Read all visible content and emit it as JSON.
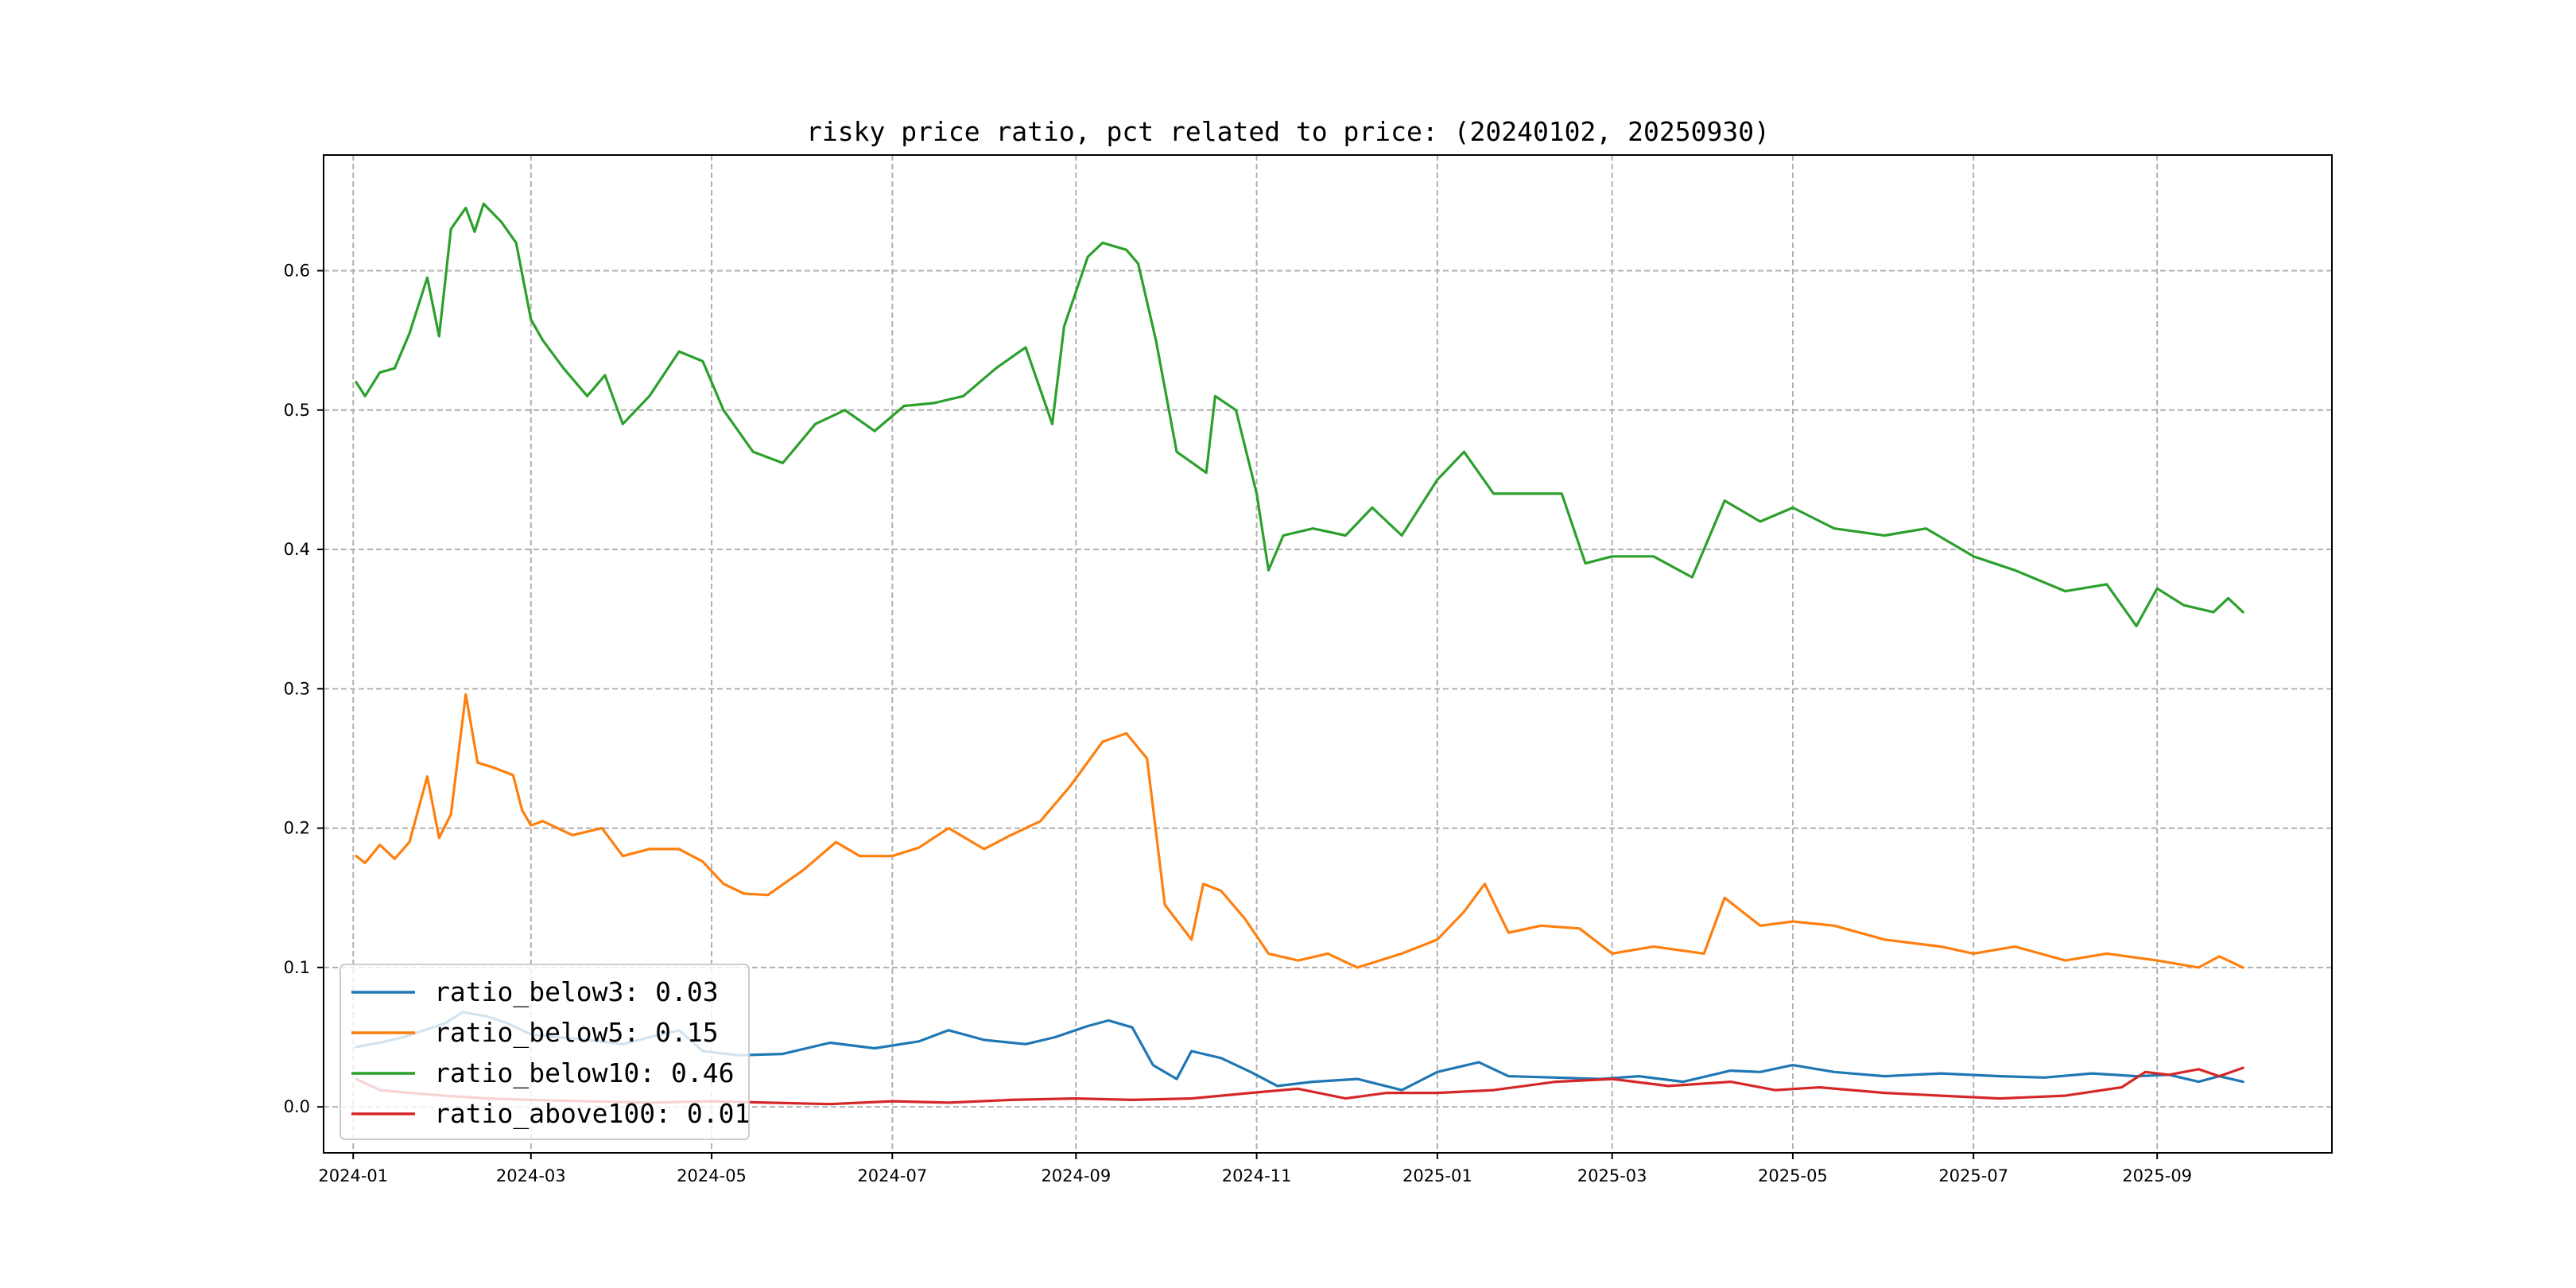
{
  "chart_data": {
    "type": "line",
    "title": "risky price ratio, pct related to price: (20240102, 20250930)",
    "xlabel": "",
    "ylabel": "",
    "x_range": [
      "2023-12-22",
      "2025-10-30"
    ],
    "ylim": [
      -0.033,
      0.683
    ],
    "x_ticks": [
      "2024-01-01",
      "2024-03-01",
      "2024-05-01",
      "2024-07-01",
      "2024-09-01",
      "2024-11-01",
      "2025-01-01",
      "2025-03-01",
      "2025-05-01",
      "2025-07-01",
      "2025-09-01"
    ],
    "x_tick_labels": [
      "2024-01",
      "2024-03",
      "2024-05",
      "2024-07",
      "2024-09",
      "2024-11",
      "2025-01",
      "2025-03",
      "2025-05",
      "2025-07",
      "2025-09"
    ],
    "y_ticks": [
      0.0,
      0.1,
      0.2,
      0.3,
      0.4,
      0.5,
      0.6
    ],
    "y_tick_labels": [
      "0.0",
      "0.1",
      "0.2",
      "0.3",
      "0.4",
      "0.5",
      "0.6"
    ],
    "grid": true,
    "legend_position": "lower-left",
    "series": [
      {
        "name": "ratio_below3",
        "legend_label": "ratio_below3: 0.03",
        "color": "#1f77b4",
        "points": [
          [
            "2024-01-02",
            0.043
          ],
          [
            "2024-01-10",
            0.046
          ],
          [
            "2024-01-18",
            0.05
          ],
          [
            "2024-01-25",
            0.055
          ],
          [
            "2024-02-01",
            0.06
          ],
          [
            "2024-02-07",
            0.068
          ],
          [
            "2024-02-15",
            0.065
          ],
          [
            "2024-02-22",
            0.06
          ],
          [
            "2024-03-01",
            0.052
          ],
          [
            "2024-03-10",
            0.05
          ],
          [
            "2024-03-20",
            0.048
          ],
          [
            "2024-04-01",
            0.045
          ],
          [
            "2024-04-10",
            0.05
          ],
          [
            "2024-04-20",
            0.055
          ],
          [
            "2024-04-28",
            0.04
          ],
          [
            "2024-05-10",
            0.037
          ],
          [
            "2024-05-25",
            0.038
          ],
          [
            "2024-06-10",
            0.046
          ],
          [
            "2024-06-25",
            0.042
          ],
          [
            "2024-07-10",
            0.047
          ],
          [
            "2024-07-20",
            0.055
          ],
          [
            "2024-08-01",
            0.048
          ],
          [
            "2024-08-15",
            0.045
          ],
          [
            "2024-08-25",
            0.05
          ],
          [
            "2024-09-05",
            0.058
          ],
          [
            "2024-09-12",
            0.062
          ],
          [
            "2024-09-20",
            0.057
          ],
          [
            "2024-09-27",
            0.03
          ],
          [
            "2024-10-05",
            0.02
          ],
          [
            "2024-10-10",
            0.04
          ],
          [
            "2024-10-20",
            0.035
          ],
          [
            "2024-10-30",
            0.025
          ],
          [
            "2024-11-08",
            0.015
          ],
          [
            "2024-11-20",
            0.018
          ],
          [
            "2024-12-05",
            0.02
          ],
          [
            "2024-12-20",
            0.012
          ],
          [
            "2025-01-01",
            0.025
          ],
          [
            "2025-01-15",
            0.032
          ],
          [
            "2025-01-25",
            0.022
          ],
          [
            "2025-02-10",
            0.021
          ],
          [
            "2025-02-25",
            0.02
          ],
          [
            "2025-03-10",
            0.022
          ],
          [
            "2025-03-25",
            0.018
          ],
          [
            "2025-04-10",
            0.026
          ],
          [
            "2025-04-20",
            0.025
          ],
          [
            "2025-05-01",
            0.03
          ],
          [
            "2025-05-15",
            0.025
          ],
          [
            "2025-06-01",
            0.022
          ],
          [
            "2025-06-20",
            0.024
          ],
          [
            "2025-07-10",
            0.022
          ],
          [
            "2025-07-25",
            0.021
          ],
          [
            "2025-08-10",
            0.024
          ],
          [
            "2025-08-25",
            0.022
          ],
          [
            "2025-09-05",
            0.023
          ],
          [
            "2025-09-15",
            0.018
          ],
          [
            "2025-09-22",
            0.022
          ],
          [
            "2025-09-30",
            0.018
          ]
        ]
      },
      {
        "name": "ratio_below5",
        "legend_label": "ratio_below5: 0.15",
        "color": "#ff7f0e",
        "points": [
          [
            "2024-01-02",
            0.18
          ],
          [
            "2024-01-05",
            0.175
          ],
          [
            "2024-01-10",
            0.188
          ],
          [
            "2024-01-15",
            0.178
          ],
          [
            "2024-01-20",
            0.19
          ],
          [
            "2024-01-26",
            0.237
          ],
          [
            "2024-01-30",
            0.193
          ],
          [
            "2024-02-03",
            0.21
          ],
          [
            "2024-02-08",
            0.296
          ],
          [
            "2024-02-12",
            0.247
          ],
          [
            "2024-02-18",
            0.243
          ],
          [
            "2024-02-24",
            0.238
          ],
          [
            "2024-02-27",
            0.213
          ],
          [
            "2024-03-01",
            0.202
          ],
          [
            "2024-03-05",
            0.205
          ],
          [
            "2024-03-15",
            0.195
          ],
          [
            "2024-03-25",
            0.2
          ],
          [
            "2024-04-01",
            0.18
          ],
          [
            "2024-04-10",
            0.185
          ],
          [
            "2024-04-20",
            0.185
          ],
          [
            "2024-04-28",
            0.176
          ],
          [
            "2024-05-05",
            0.16
          ],
          [
            "2024-05-12",
            0.153
          ],
          [
            "2024-05-20",
            0.152
          ],
          [
            "2024-06-01",
            0.17
          ],
          [
            "2024-06-12",
            0.19
          ],
          [
            "2024-06-20",
            0.18
          ],
          [
            "2024-07-01",
            0.18
          ],
          [
            "2024-07-10",
            0.186
          ],
          [
            "2024-07-20",
            0.2
          ],
          [
            "2024-08-01",
            0.185
          ],
          [
            "2024-08-10",
            0.195
          ],
          [
            "2024-08-20",
            0.205
          ],
          [
            "2024-08-30",
            0.23
          ],
          [
            "2024-09-10",
            0.262
          ],
          [
            "2024-09-18",
            0.268
          ],
          [
            "2024-09-25",
            0.25
          ],
          [
            "2024-10-01",
            0.145
          ],
          [
            "2024-10-10",
            0.12
          ],
          [
            "2024-10-14",
            0.16
          ],
          [
            "2024-10-20",
            0.155
          ],
          [
            "2024-10-28",
            0.135
          ],
          [
            "2024-11-05",
            0.11
          ],
          [
            "2024-11-15",
            0.105
          ],
          [
            "2024-11-25",
            0.11
          ],
          [
            "2024-12-05",
            0.1
          ],
          [
            "2024-12-20",
            0.11
          ],
          [
            "2025-01-01",
            0.12
          ],
          [
            "2025-01-10",
            0.14
          ],
          [
            "2025-01-17",
            0.16
          ],
          [
            "2025-01-25",
            0.125
          ],
          [
            "2025-02-05",
            0.13
          ],
          [
            "2025-02-18",
            0.128
          ],
          [
            "2025-03-01",
            0.11
          ],
          [
            "2025-03-15",
            0.115
          ],
          [
            "2025-04-01",
            0.11
          ],
          [
            "2025-04-08",
            0.15
          ],
          [
            "2025-04-20",
            0.13
          ],
          [
            "2025-05-01",
            0.133
          ],
          [
            "2025-05-15",
            0.13
          ],
          [
            "2025-06-01",
            0.12
          ],
          [
            "2025-06-20",
            0.115
          ],
          [
            "2025-07-01",
            0.11
          ],
          [
            "2025-07-15",
            0.115
          ],
          [
            "2025-08-01",
            0.105
          ],
          [
            "2025-08-15",
            0.11
          ],
          [
            "2025-09-01",
            0.105
          ],
          [
            "2025-09-15",
            0.1
          ],
          [
            "2025-09-22",
            0.108
          ],
          [
            "2025-09-30",
            0.1
          ]
        ]
      },
      {
        "name": "ratio_below10",
        "legend_label": "ratio_below10: 0.46",
        "color": "#2ca02c",
        "points": [
          [
            "2024-01-02",
            0.52
          ],
          [
            "2024-01-05",
            0.51
          ],
          [
            "2024-01-10",
            0.527
          ],
          [
            "2024-01-15",
            0.53
          ],
          [
            "2024-01-20",
            0.555
          ],
          [
            "2024-01-26",
            0.595
          ],
          [
            "2024-01-30",
            0.553
          ],
          [
            "2024-02-03",
            0.63
          ],
          [
            "2024-02-08",
            0.645
          ],
          [
            "2024-02-11",
            0.628
          ],
          [
            "2024-02-14",
            0.648
          ],
          [
            "2024-02-20",
            0.635
          ],
          [
            "2024-02-25",
            0.62
          ],
          [
            "2024-03-01",
            0.565
          ],
          [
            "2024-03-05",
            0.55
          ],
          [
            "2024-03-12",
            0.53
          ],
          [
            "2024-03-20",
            0.51
          ],
          [
            "2024-03-26",
            0.525
          ],
          [
            "2024-04-01",
            0.49
          ],
          [
            "2024-04-10",
            0.51
          ],
          [
            "2024-04-20",
            0.542
          ],
          [
            "2024-04-28",
            0.535
          ],
          [
            "2024-05-05",
            0.5
          ],
          [
            "2024-05-15",
            0.47
          ],
          [
            "2024-05-25",
            0.462
          ],
          [
            "2024-06-05",
            0.49
          ],
          [
            "2024-06-15",
            0.5
          ],
          [
            "2024-06-25",
            0.485
          ],
          [
            "2024-07-05",
            0.503
          ],
          [
            "2024-07-15",
            0.505
          ],
          [
            "2024-07-25",
            0.51
          ],
          [
            "2024-08-05",
            0.53
          ],
          [
            "2024-08-15",
            0.545
          ],
          [
            "2024-08-24",
            0.49
          ],
          [
            "2024-08-28",
            0.56
          ],
          [
            "2024-09-05",
            0.61
          ],
          [
            "2024-09-10",
            0.62
          ],
          [
            "2024-09-18",
            0.615
          ],
          [
            "2024-09-22",
            0.605
          ],
          [
            "2024-09-28",
            0.55
          ],
          [
            "2024-10-05",
            0.47
          ],
          [
            "2024-10-15",
            0.455
          ],
          [
            "2024-10-18",
            0.51
          ],
          [
            "2024-10-25",
            0.5
          ],
          [
            "2024-11-01",
            0.44
          ],
          [
            "2024-11-05",
            0.385
          ],
          [
            "2024-11-10",
            0.41
          ],
          [
            "2024-11-20",
            0.415
          ],
          [
            "2024-12-01",
            0.41
          ],
          [
            "2024-12-10",
            0.43
          ],
          [
            "2024-12-20",
            0.41
          ],
          [
            "2025-01-01",
            0.45
          ],
          [
            "2025-01-10",
            0.47
          ],
          [
            "2025-01-20",
            0.44
          ],
          [
            "2025-02-01",
            0.44
          ],
          [
            "2025-02-12",
            0.44
          ],
          [
            "2025-02-20",
            0.39
          ],
          [
            "2025-03-01",
            0.395
          ],
          [
            "2025-03-15",
            0.395
          ],
          [
            "2025-03-28",
            0.38
          ],
          [
            "2025-04-08",
            0.435
          ],
          [
            "2025-04-20",
            0.42
          ],
          [
            "2025-05-01",
            0.43
          ],
          [
            "2025-05-15",
            0.415
          ],
          [
            "2025-06-01",
            0.41
          ],
          [
            "2025-06-15",
            0.415
          ],
          [
            "2025-07-01",
            0.395
          ],
          [
            "2025-07-15",
            0.385
          ],
          [
            "2025-08-01",
            0.37
          ],
          [
            "2025-08-15",
            0.375
          ],
          [
            "2025-08-25",
            0.345
          ],
          [
            "2025-09-01",
            0.372
          ],
          [
            "2025-09-10",
            0.36
          ],
          [
            "2025-09-20",
            0.355
          ],
          [
            "2025-09-25",
            0.365
          ],
          [
            "2025-09-30",
            0.355
          ]
        ]
      },
      {
        "name": "ratio_above100",
        "legend_label": "ratio_above100: 0.01",
        "color": "#d62728",
        "points": [
          [
            "2024-01-02",
            0.02
          ],
          [
            "2024-01-10",
            0.012
          ],
          [
            "2024-01-20",
            0.01
          ],
          [
            "2024-02-01",
            0.008
          ],
          [
            "2024-02-15",
            0.006
          ],
          [
            "2024-03-01",
            0.005
          ],
          [
            "2024-03-20",
            0.004
          ],
          [
            "2024-04-10",
            0.003
          ],
          [
            "2024-05-01",
            0.004
          ],
          [
            "2024-05-20",
            0.003
          ],
          [
            "2024-06-10",
            0.002
          ],
          [
            "2024-07-01",
            0.004
          ],
          [
            "2024-07-20",
            0.003
          ],
          [
            "2024-08-10",
            0.005
          ],
          [
            "2024-09-01",
            0.006
          ],
          [
            "2024-09-20",
            0.005
          ],
          [
            "2024-10-10",
            0.006
          ],
          [
            "2024-10-30",
            0.01
          ],
          [
            "2024-11-15",
            0.013
          ],
          [
            "2024-12-01",
            0.006
          ],
          [
            "2024-12-15",
            0.01
          ],
          [
            "2025-01-01",
            0.01
          ],
          [
            "2025-01-20",
            0.012
          ],
          [
            "2025-02-10",
            0.018
          ],
          [
            "2025-03-01",
            0.02
          ],
          [
            "2025-03-20",
            0.015
          ],
          [
            "2025-04-10",
            0.018
          ],
          [
            "2025-04-25",
            0.012
          ],
          [
            "2025-05-10",
            0.014
          ],
          [
            "2025-06-01",
            0.01
          ],
          [
            "2025-06-20",
            0.008
          ],
          [
            "2025-07-10",
            0.006
          ],
          [
            "2025-08-01",
            0.008
          ],
          [
            "2025-08-20",
            0.014
          ],
          [
            "2025-08-28",
            0.025
          ],
          [
            "2025-09-05",
            0.023
          ],
          [
            "2025-09-15",
            0.027
          ],
          [
            "2025-09-22",
            0.022
          ],
          [
            "2025-09-30",
            0.028
          ]
        ]
      }
    ]
  }
}
